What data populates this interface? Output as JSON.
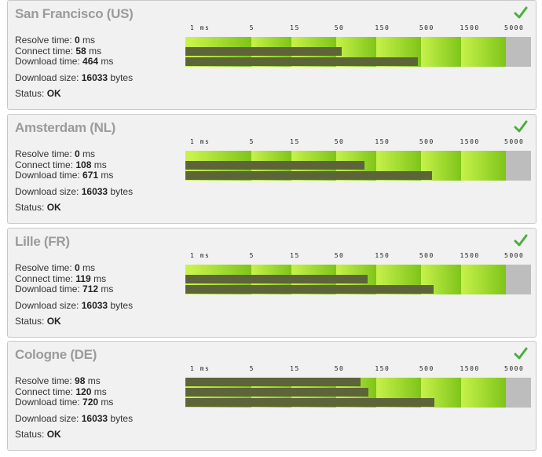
{
  "colors": {
    "panel_bg": "#f1f1f1",
    "title": "#9b9b9b",
    "check": "#4caf3c",
    "bar": "#5d643a",
    "scale_bright": "#c6f24a",
    "scale_dark": "#7fc41a",
    "scale_gray": "#bdbdbd"
  },
  "scale_labels": [
    "1 ms",
    "5",
    "15",
    "50",
    "150",
    "500",
    "1500",
    "5000"
  ],
  "stat_labels": {
    "resolve": "Resolve time: ",
    "connect": "Connect time: ",
    "download": "Download time: ",
    "size": "Download size: ",
    "status": "Status: "
  },
  "units": {
    "ms": " ms",
    "bytes": " bytes"
  },
  "locations": [
    {
      "name": "San Francisco (US)",
      "status_icon": "check-icon",
      "resolve": "0",
      "connect": "58",
      "download": "464",
      "size": "16033",
      "status": "OK"
    },
    {
      "name": "Amsterdam (NL)",
      "status_icon": "check-icon",
      "resolve": "0",
      "connect": "108",
      "download": "671",
      "size": "16033",
      "status": "OK"
    },
    {
      "name": "Lille (FR)",
      "status_icon": "check-icon",
      "resolve": "0",
      "connect": "119",
      "download": "712",
      "size": "16033",
      "status": "OK"
    },
    {
      "name": "Cologne (DE)",
      "status_icon": "check-icon",
      "resolve": "98",
      "connect": "120",
      "download": "720",
      "size": "16033",
      "status": "OK"
    }
  ]
}
